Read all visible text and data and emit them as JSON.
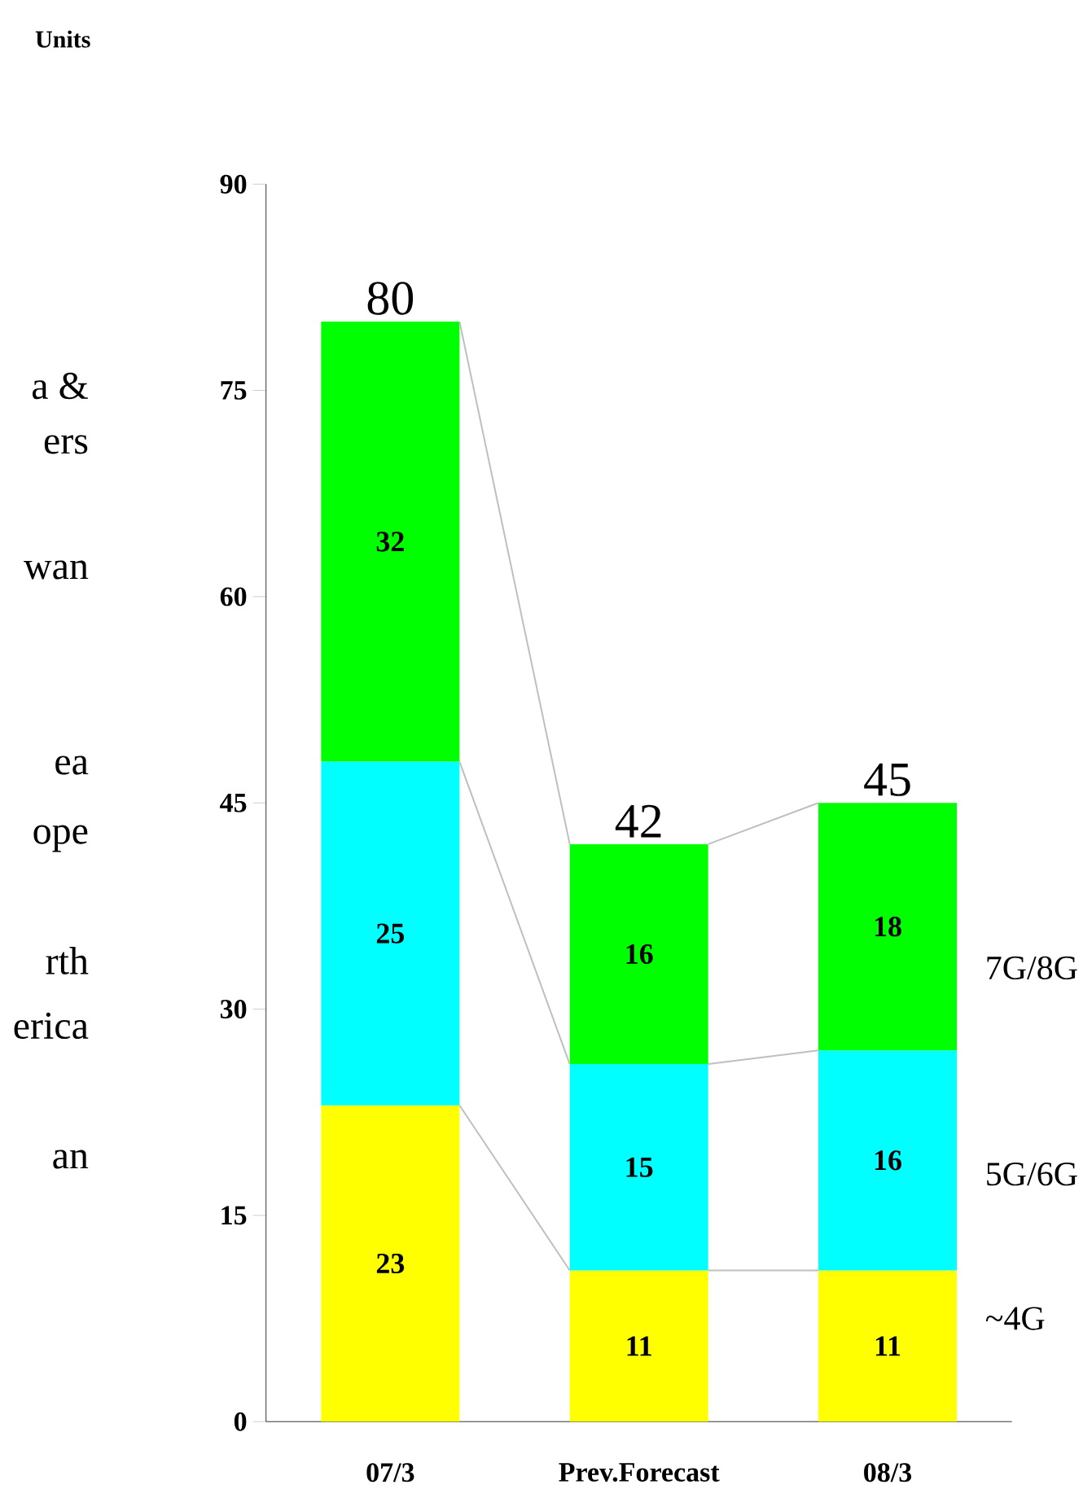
{
  "chart_data": {
    "type": "bar",
    "stacked": true,
    "data_labels": true,
    "categories": [
      "07/3",
      "Prev.Forecast",
      "08/3"
    ],
    "series": [
      {
        "name": "~4G",
        "color": "#ffff00",
        "values": [
          23,
          11,
          11
        ]
      },
      {
        "name": "5G/6G",
        "color": "#00ffff",
        "values": [
          25,
          15,
          16
        ]
      },
      {
        "name": "7G/8G",
        "color": "#00ff00",
        "values": [
          32,
          16,
          18
        ]
      }
    ],
    "totals": [
      "80",
      "42",
      "45"
    ],
    "ylim": [
      0,
      90
    ],
    "yticks": [
      0,
      15,
      30,
      45,
      60,
      75,
      90
    ],
    "annotations": [
      "Units",
      "a &",
      "ers",
      "wan",
      "ea",
      "ope",
      "rth",
      "erica",
      "an"
    ]
  }
}
